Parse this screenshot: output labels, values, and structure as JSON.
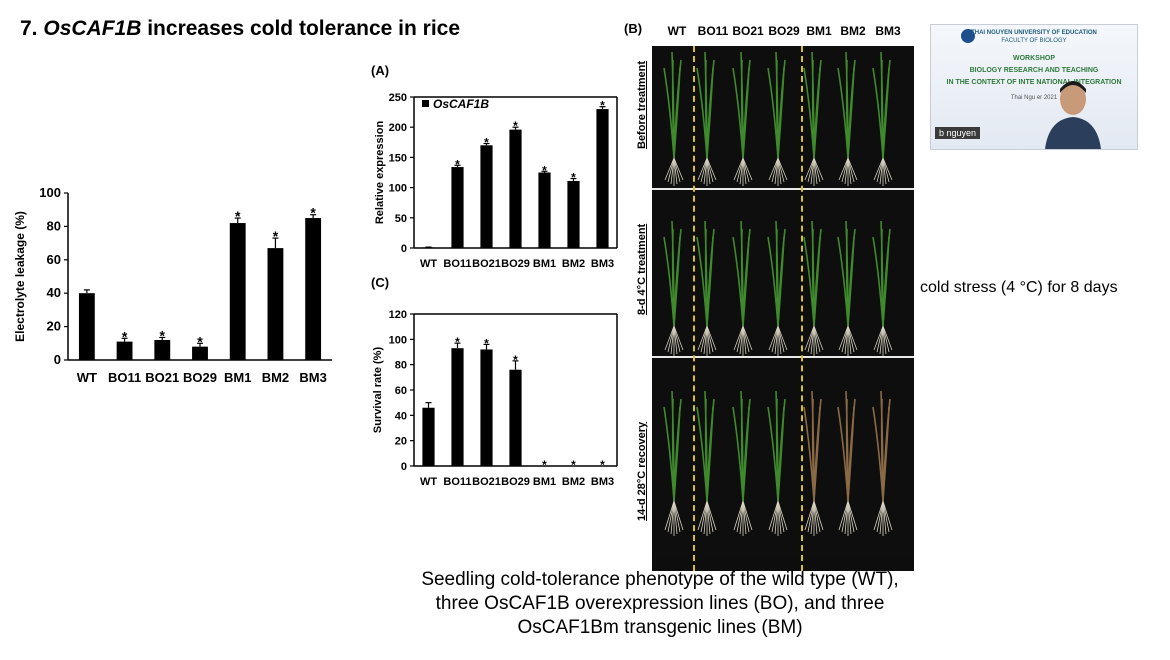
{
  "slide": {
    "title_prefix": "7. ",
    "title_gene": "OsCAF1B",
    "title_rest": " increases cold tolerance in rice",
    "cold_note": "cold stress (4 °C) for 8 days",
    "caption_lines": [
      "Seedling cold-tolerance phenotype of the wild type (WT),",
      "three OsCAF1B overexpression lines (BO), and three",
      "OsCAF1Bm transgenic lines (BM)"
    ]
  },
  "photo_panel": {
    "label": "(B)",
    "columns": [
      "WT",
      "BO11",
      "BO21",
      "BO29",
      "BM1",
      "BM2",
      "BM3"
    ],
    "rows": [
      "Before treatment",
      "8-d 4°C treatment",
      "14-d 28°C recovery"
    ],
    "divider_color": "#d9c21b"
  },
  "video_overlay": {
    "line1": "THAI NGUYEN UNIVERSITY OF EDUCATION",
    "line2": "FACULTY OF BIOLOGY",
    "line3": "WORKSHOP",
    "line4": "BIOLOGY RESEARCH AND TEACHING",
    "line5": "IN THE CONTEXT OF INTE NATIONAL INTEGRATION",
    "line6": "Thai Ngu          er 2021",
    "name_badge": "b nguyen"
  },
  "chart_data": [
    {
      "id": "electrolyte",
      "type": "bar",
      "title": "",
      "categories": [
        "WT",
        "BO11",
        "BO21",
        "BO29",
        "BM1",
        "BM2",
        "BM3"
      ],
      "values": [
        40,
        11,
        12,
        8,
        82,
        67,
        85
      ],
      "errors": [
        2,
        2,
        1.5,
        2,
        3,
        6,
        2
      ],
      "significant": [
        false,
        true,
        true,
        true,
        true,
        true,
        true
      ],
      "ylabel": "Electrolyte leakage (%)",
      "xlabel": "",
      "ylim": [
        0,
        100
      ],
      "yticks": [
        0,
        20,
        40,
        60,
        80,
        100
      ],
      "bar_color": "#000000"
    },
    {
      "id": "expression",
      "type": "bar",
      "title": "(A)",
      "legend": "OsCAF1B",
      "categories": [
        "WT",
        "BO11",
        "BO21",
        "BO29",
        "BM1",
        "BM2",
        "BM3"
      ],
      "values": [
        1,
        134,
        170,
        196,
        125,
        111,
        230
      ],
      "errors": [
        0.5,
        3,
        3,
        4,
        2,
        4,
        4
      ],
      "significant": [
        false,
        true,
        true,
        true,
        true,
        true,
        true
      ],
      "ylabel": "Relative expression",
      "xlabel": "",
      "ylim": [
        0,
        250
      ],
      "yticks": [
        0,
        50,
        100,
        150,
        200,
        250
      ],
      "bar_color": "#000000"
    },
    {
      "id": "survival",
      "type": "bar",
      "title": "(C)",
      "categories": [
        "WT",
        "BO11",
        "BO21",
        "BO29",
        "BM1",
        "BM2",
        "BM3"
      ],
      "values": [
        46,
        93,
        92,
        76,
        0,
        0,
        0
      ],
      "errors": [
        4,
        4,
        4,
        7,
        0,
        0,
        0
      ],
      "significant": [
        false,
        true,
        true,
        true,
        true,
        true,
        true
      ],
      "ylabel": "Survival rate (%)",
      "xlabel": "",
      "ylim": [
        0,
        120
      ],
      "yticks": [
        0,
        20,
        40,
        60,
        80,
        100,
        120
      ],
      "bar_color": "#000000"
    }
  ]
}
